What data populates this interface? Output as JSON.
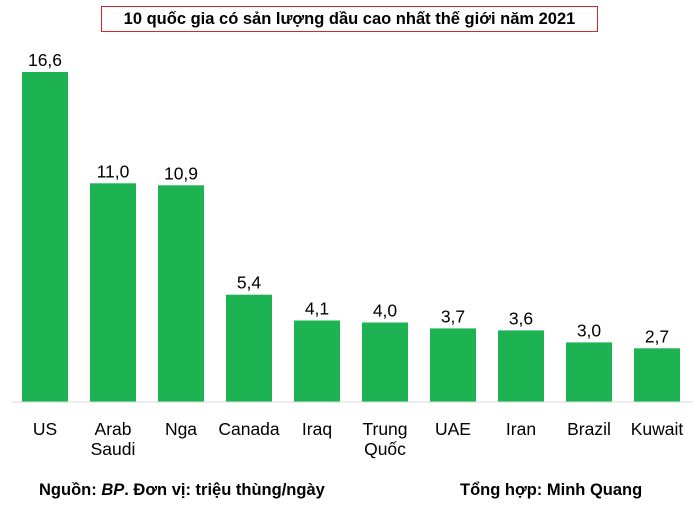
{
  "chart_data": {
    "type": "bar",
    "title": "10 quốc gia có sản lượng dầu cao nhất thế giới năm 2021",
    "categories": [
      [
        "US"
      ],
      [
        "Arab",
        "Saudi"
      ],
      [
        "Nga"
      ],
      [
        "Canada"
      ],
      [
        "Iraq"
      ],
      [
        "Trung",
        "Quốc"
      ],
      [
        "UAE"
      ],
      [
        "Iran"
      ],
      [
        "Brazil"
      ],
      [
        "Kuwait"
      ]
    ],
    "values": [
      16.6,
      11.0,
      10.9,
      5.4,
      4.1,
      4.0,
      3.7,
      3.6,
      3.0,
      2.7
    ],
    "value_labels": [
      "16,6",
      "11,0",
      "10,9",
      "5,4",
      "4,1",
      "4,0",
      "3,7",
      "3,6",
      "3,0",
      "2,7"
    ],
    "ylim": [
      0,
      16.6
    ],
    "grid": false,
    "bar_color": "#1db353",
    "axis_color": "#d9d9d9"
  },
  "footer": {
    "source_prefix": "Nguồn: ",
    "source_name": "BP",
    "source_suffix": ". Đơn vị: triệu thùng/ngày",
    "compiled_by": "Tổng hợp: Minh Quang"
  },
  "colors": {
    "title_border": "#d9232d"
  }
}
